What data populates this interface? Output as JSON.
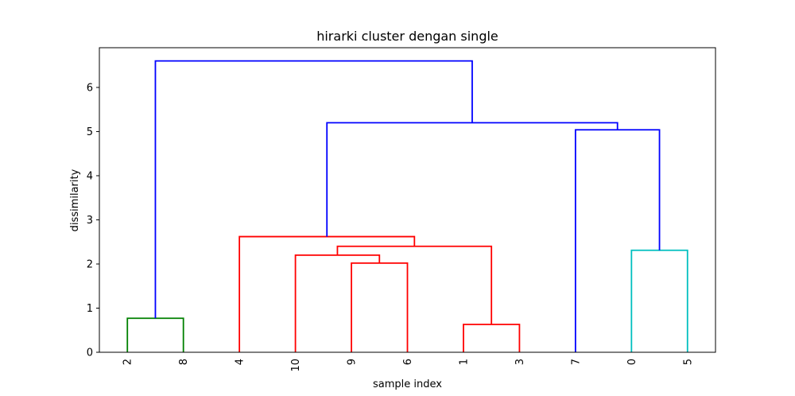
{
  "chart_data": {
    "type": "dendrogram",
    "title": "hirarki cluster dengan single",
    "xlabel": "sample index",
    "ylabel": "dissimilarity",
    "ylim": [
      0,
      6.9
    ],
    "yticks": [
      "0",
      "1",
      "2",
      "3",
      "4",
      "5",
      "6"
    ],
    "leaves": [
      "2",
      "8",
      "4",
      "10",
      "9",
      "6",
      "1",
      "3",
      "7",
      "0",
      "5"
    ],
    "colors": {
      "green": "#008000",
      "red": "#ff0000",
      "cyan": "#00bfbf",
      "blue": "#0000ff"
    },
    "links": [
      {
        "left": [
          5,
          0
        ],
        "right": [
          15,
          0
        ],
        "height": 0.77,
        "color": "green"
      },
      {
        "left": [
          65,
          0
        ],
        "right": [
          75,
          0
        ],
        "height": 0.63,
        "color": "red"
      },
      {
        "left": [
          45,
          0
        ],
        "right": [
          55,
          0
        ],
        "height": 2.02,
        "color": "red"
      },
      {
        "left": [
          35,
          0
        ],
        "right": [
          50,
          2.02
        ],
        "height": 2.2,
        "color": "red"
      },
      {
        "left": [
          42.5,
          2.2
        ],
        "right": [
          70,
          0.63
        ],
        "height": 2.4,
        "color": "red"
      },
      {
        "left": [
          25,
          0
        ],
        "right": [
          56.25,
          2.4
        ],
        "height": 2.62,
        "color": "red"
      },
      {
        "left": [
          95,
          0
        ],
        "right": [
          105,
          0
        ],
        "height": 2.31,
        "color": "cyan"
      },
      {
        "left": [
          85,
          0
        ],
        "right": [
          100,
          2.31
        ],
        "height": 5.04,
        "color": "blue"
      },
      {
        "left": [
          40.625,
          2.62
        ],
        "right": [
          92.5,
          5.04
        ],
        "height": 5.2,
        "color": "blue"
      },
      {
        "left": [
          10,
          0.77
        ],
        "right": [
          66.5625,
          5.2
        ],
        "height": 6.6,
        "color": "blue"
      }
    ]
  }
}
